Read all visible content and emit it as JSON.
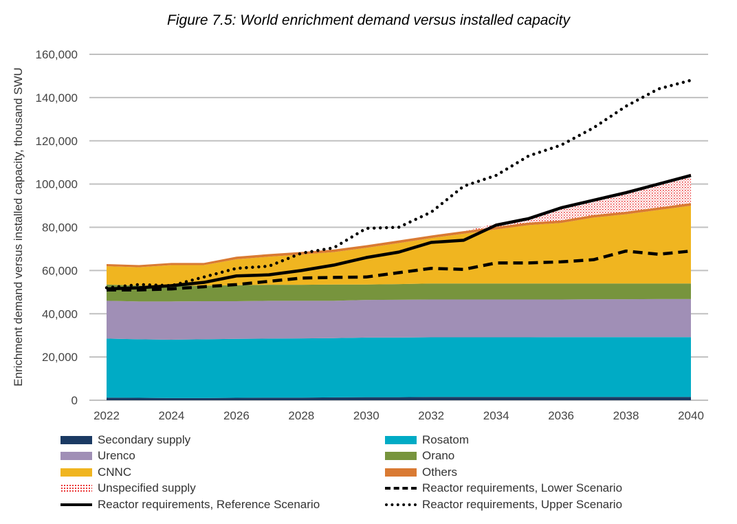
{
  "chart_data": {
    "type": "area",
    "title": "Figure 7.5: World enrichment demand versus installed capacity",
    "ylabel": "Enrichment demand versus installed capacity, thousand SWU",
    "xlabel": "",
    "ylim": [
      0,
      160000
    ],
    "yticks": [
      "0",
      "20,000",
      "40,000",
      "60,000",
      "80,000",
      "100,000",
      "120,000",
      "140,000",
      "160,000"
    ],
    "xticks": [
      "2022",
      "2024",
      "2026",
      "2028",
      "2030",
      "2032",
      "2034",
      "2036",
      "2038",
      "2040"
    ],
    "grid": true,
    "legend_placement": "bottom",
    "x": [
      2022,
      2023,
      2024,
      2025,
      2026,
      2027,
      2028,
      2029,
      2030,
      2031,
      2032,
      2033,
      2034,
      2035,
      2036,
      2037,
      2038,
      2039,
      2040
    ],
    "stacked_series": [
      {
        "name": "Secondary supply",
        "color": "#1b3a63",
        "values": [
          1200,
          1100,
          1000,
          1000,
          1100,
          1200,
          1200,
          1300,
          1400,
          1400,
          1500,
          1500,
          1500,
          1500,
          1500,
          1500,
          1500,
          1500,
          1500
        ]
      },
      {
        "name": "Rosatom",
        "color": "#00abc5",
        "values": [
          27300,
          27100,
          27000,
          27200,
          27300,
          27300,
          27400,
          27400,
          27600,
          27600,
          27600,
          27600,
          27600,
          27600,
          27700,
          27700,
          27700,
          27700,
          27700
        ]
      },
      {
        "name": "Urenco",
        "color": "#a08fb6",
        "values": [
          17500,
          17500,
          17700,
          17600,
          17400,
          17500,
          17400,
          17300,
          17400,
          17500,
          17500,
          17500,
          17500,
          17500,
          17400,
          17500,
          17500,
          17600,
          17600
        ]
      },
      {
        "name": "Orano",
        "color": "#77943d",
        "values": [
          7500,
          7300,
          7300,
          7200,
          7400,
          7400,
          7400,
          7500,
          7100,
          7200,
          7400,
          7400,
          7400,
          7400,
          7400,
          7300,
          7300,
          7200,
          7200
        ]
      },
      {
        "name": "CNNC",
        "color": "#f0b520",
        "values": [
          8500,
          8500,
          9500,
          9500,
          12000,
          13000,
          14000,
          15000,
          17000,
          19000,
          21000,
          23000,
          25000,
          27000,
          28000,
          30500,
          32000,
          34000,
          36000
        ]
      },
      {
        "name": "Others",
        "color": "#d97a33",
        "values": [
          1000,
          1000,
          1000,
          1000,
          1200,
          1200,
          1200,
          1200,
          1200,
          1200,
          1200,
          1200,
          1200,
          1200,
          1200,
          1200,
          1200,
          1200,
          1200
        ]
      },
      {
        "name": "Unspecified supply",
        "color": "#e81c1c",
        "pattern": "dotted",
        "values": [
          0,
          0,
          0,
          0,
          0,
          0,
          0,
          0,
          0,
          0,
          0,
          0,
          1500,
          2500,
          6500,
          7500,
          9500,
          11500,
          13500
        ]
      }
    ],
    "line_series": [
      {
        "name": "Reactor requirements, Lower Scenario",
        "style": "dashed",
        "values": [
          51000,
          51000,
          51500,
          52500,
          53500,
          55000,
          56500,
          56800,
          57000,
          59000,
          61000,
          60500,
          63500,
          63500,
          64000,
          65000,
          69000,
          67500,
          69000
        ]
      },
      {
        "name": "Reactor requirements, Reference Scenario",
        "style": "solid",
        "values": [
          51500,
          52000,
          53000,
          54500,
          57500,
          58000,
          60000,
          62500,
          66000,
          68500,
          73000,
          74000,
          81000,
          84000,
          89000,
          92500,
          96000,
          100000,
          104000
        ]
      },
      {
        "name": "Reactor requirements, Upper Scenario",
        "style": "dotted",
        "values": [
          52000,
          53500,
          53000,
          57000,
          61000,
          62000,
          68000,
          70500,
          79500,
          80000,
          87000,
          99000,
          104000,
          113000,
          118000,
          126000,
          136000,
          144000,
          148000
        ]
      }
    ],
    "legend": [
      {
        "label": "Secondary supply",
        "kind": "area",
        "color": "#1b3a63"
      },
      {
        "label": "Rosatom",
        "kind": "area",
        "color": "#00abc5"
      },
      {
        "label": "Urenco",
        "kind": "area",
        "color": "#a08fb6"
      },
      {
        "label": "Orano",
        "kind": "area",
        "color": "#77943d"
      },
      {
        "label": "CNNC",
        "kind": "area",
        "color": "#f0b520"
      },
      {
        "label": "Others",
        "kind": "area",
        "color": "#d97a33"
      },
      {
        "label": "Unspecified supply",
        "kind": "pattern",
        "color": "#e81c1c"
      },
      {
        "label": "Reactor requirements, Lower Scenario",
        "kind": "dashed",
        "color": "#000000"
      },
      {
        "label": "Reactor requirements, Reference Scenario",
        "kind": "solid",
        "color": "#000000"
      },
      {
        "label": "Reactor requirements, Upper Scenario",
        "kind": "dotted",
        "color": "#000000"
      }
    ]
  }
}
